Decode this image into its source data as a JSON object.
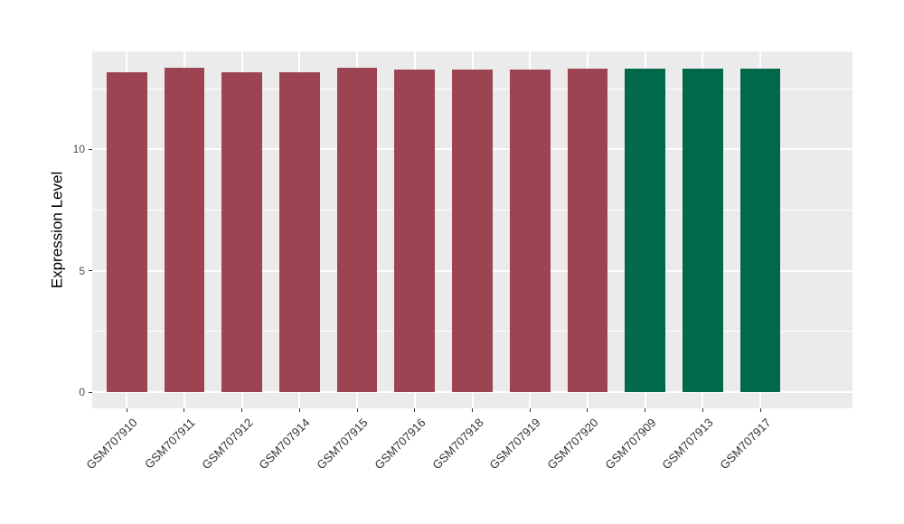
{
  "chart": {
    "title": "",
    "colors": {
      "panel_background": "#EBEBEB",
      "figure_background": "#FFFFFF",
      "gridline": "#FFFFFF",
      "tick_mark": "#333333",
      "axis_text": "#4D4D4D",
      "x_axis_text": "#333333",
      "axis_title": "#000000",
      "group_red": "#9C4452",
      "group_green": "#00684B"
    }
  },
  "chart_data": {
    "type": "bar",
    "title": "",
    "xlabel": "",
    "ylabel": "Expression Level",
    "categories": [
      "GSM707910",
      "GSM707911",
      "GSM707912",
      "GSM707914",
      "GSM707915",
      "GSM707916",
      "GSM707918",
      "GSM707919",
      "GSM707920",
      "GSM707909",
      "GSM707913",
      "GSM707917"
    ],
    "values": [
      13.2,
      13.37,
      13.19,
      13.19,
      13.35,
      13.3,
      13.3,
      13.3,
      13.33,
      13.33,
      13.34,
      13.34
    ],
    "bar_colors": [
      "#9C4452",
      "#9C4452",
      "#9C4452",
      "#9C4452",
      "#9C4452",
      "#9C4452",
      "#9C4452",
      "#9C4452",
      "#9C4452",
      "#00684B",
      "#00684B",
      "#00684B"
    ],
    "yticks": [
      0,
      5,
      10
    ],
    "yticks_minor": [
      2.5,
      7.5,
      12.5
    ],
    "ylim": [
      -0.67,
      14.04
    ],
    "grid": true,
    "legend": false,
    "bar_width_fraction": 0.7,
    "x_label_angle": 45
  }
}
